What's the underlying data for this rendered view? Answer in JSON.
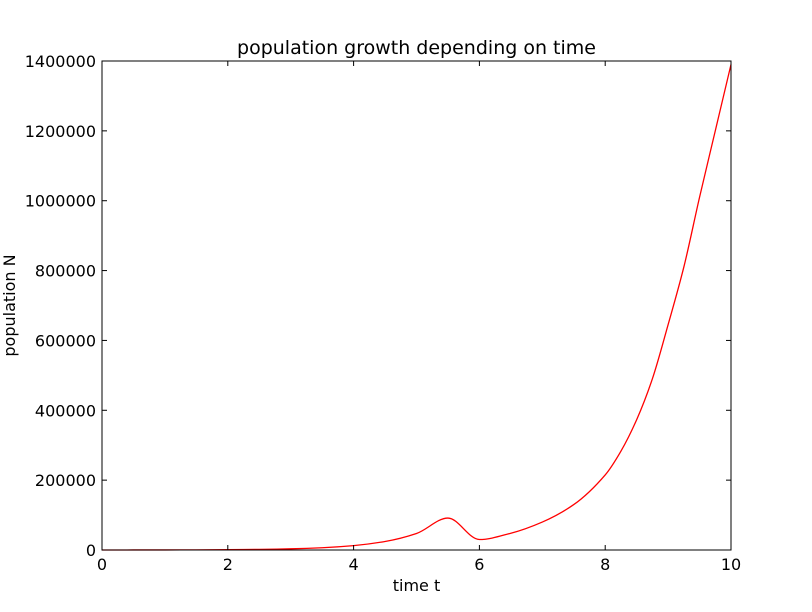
{
  "chart_data": {
    "type": "line",
    "title": "population growth depending on time",
    "xlabel": "time t",
    "ylabel": "population N",
    "xlim": [
      0,
      10
    ],
    "ylim": [
      0,
      1400000
    ],
    "x_ticks": [
      "0",
      "2",
      "4",
      "6",
      "8",
      "10"
    ],
    "y_ticks": [
      "0",
      "200000",
      "400000",
      "600000",
      "800000",
      "1000000",
      "1200000",
      "1400000"
    ],
    "grid": false,
    "legend": "none",
    "series": [
      {
        "color": "#ff0000",
        "x": [
          0,
          0.5,
          1,
          1.5,
          2,
          2.5,
          3,
          3.5,
          4,
          4.5,
          5,
          5.5,
          6,
          6.5,
          7,
          7.5,
          8,
          8.25,
          8.5,
          8.75,
          9,
          9.25,
          9.5,
          9.75,
          10
        ],
        "y": [
          64,
          124,
          240,
          465,
          900,
          1740,
          3370,
          6520,
          12600,
          24400,
          47300,
          91500,
          30000,
          48000,
          80000,
          130000,
          215000,
          283000,
          373000,
          490000,
          645000,
          810000,
          1010000,
          1200000,
          1390000
        ]
      }
    ]
  }
}
